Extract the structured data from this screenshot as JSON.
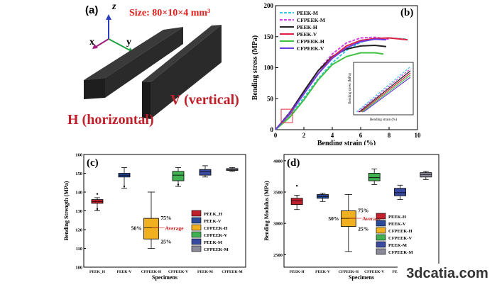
{
  "panel_a": {
    "label": "(a)",
    "size_text": "Size: 80×10×4 mm³",
    "axis_z": "z",
    "axis_x": "x",
    "axis_y": "y",
    "h_text": "H (horizontal)",
    "v_text": "V (vertical)",
    "colors": {
      "size": "#e0201a",
      "label": "#c0202a",
      "bar": "#2b2b2b"
    }
  },
  "chart_data": [
    {
      "id": "b",
      "type": "line",
      "label": "(b)",
      "title": "",
      "xlabel": "Bending strain (%)",
      "ylabel": "Bending stress (MPa)",
      "xlim": [
        0,
        10
      ],
      "ylim": [
        0,
        200
      ],
      "xticks": [
        0,
        2,
        4,
        6,
        8,
        10
      ],
      "yticks": [
        0,
        50,
        100,
        150,
        200
      ],
      "legend_position": "top-left",
      "series": [
        {
          "name": "PEEK-M",
          "color": "#39c8e6",
          "dash": true,
          "x": [
            0,
            1,
            2,
            3,
            4,
            5,
            6,
            7,
            8,
            9.2
          ],
          "y": [
            0,
            22,
            52,
            82,
            108,
            128,
            141,
            147,
            148,
            146
          ]
        },
        {
          "name": "CFPEEK-M",
          "color": "#d040e0",
          "dash": true,
          "x": [
            0,
            1,
            2,
            3,
            4,
            5,
            6,
            7,
            8
          ],
          "y": [
            0,
            28,
            62,
            95,
            122,
            140,
            148,
            149,
            146
          ]
        },
        {
          "name": "PEEK-H",
          "color": "#222222",
          "dash": false,
          "x": [
            0,
            1,
            2,
            3,
            4,
            5,
            6,
            7,
            7.8
          ],
          "y": [
            0,
            27,
            62,
            95,
            118,
            130,
            135,
            136,
            134
          ]
        },
        {
          "name": "PEEK-V",
          "color": "#e02040",
          "dash": false,
          "x": [
            0,
            1,
            2,
            3,
            4,
            5,
            6,
            7,
            8,
            9.3
          ],
          "y": [
            0,
            25,
            58,
            90,
            117,
            135,
            144,
            147,
            148,
            145
          ]
        },
        {
          "name": "CFPEEK-H",
          "color": "#40c040",
          "dash": false,
          "x": [
            0,
            1,
            2,
            3,
            4,
            5,
            6,
            7,
            7.6
          ],
          "y": [
            0,
            20,
            48,
            80,
            105,
            118,
            124,
            124,
            122
          ]
        },
        {
          "name": "CFPEEK-V",
          "color": "#6a3ce0",
          "dash": false,
          "x": [
            0,
            1,
            2,
            3,
            4,
            5,
            6,
            7,
            7.8
          ],
          "y": [
            0,
            26,
            58,
            90,
            115,
            132,
            142,
            146,
            145
          ]
        }
      ],
      "inset": {
        "ylabel": "Bending stress (MPa)",
        "xlabel": "Bending strain (%)"
      }
    },
    {
      "id": "c",
      "type": "box",
      "label": "(c)",
      "title": "",
      "xlabel": "Specimens",
      "ylabel": "Bending Strength (MPa)",
      "ylim": [
        100,
        160
      ],
      "yticks": [
        100,
        110,
        120,
        130,
        140,
        150,
        160
      ],
      "categories": [
        "PEEK_H",
        "PEEK-V",
        "CFPEEK-H",
        "CFPEEK-V",
        "PEEK-M",
        "CFPEEK-M"
      ],
      "boxes": [
        {
          "min": 130,
          "q1": 134,
          "median": 135,
          "q3": 136,
          "max": 137,
          "outliers": [
            131,
            139
          ],
          "color": "#c0202a"
        },
        {
          "min": 142,
          "q1": 148,
          "median": 149,
          "q3": 150,
          "max": 153,
          "outliers": [
            143
          ],
          "color": "#2a4a9a"
        },
        {
          "min": 110,
          "q1": 115,
          "median": 121,
          "q3": 126,
          "max": 140,
          "outliers": [],
          "color": "#f0b020"
        },
        {
          "min": 143,
          "q1": 146,
          "median": 149,
          "q3": 151,
          "max": 153,
          "outliers": [
            144
          ],
          "color": "#40b050"
        },
        {
          "min": 148,
          "q1": 149,
          "median": 151,
          "q3": 152,
          "max": 154,
          "outliers": [],
          "color": "#3a4aa0"
        },
        {
          "min": 151,
          "q1": 151.5,
          "median": 152,
          "q3": 152.5,
          "max": 153,
          "outliers": [],
          "color": "#8a8a98"
        }
      ],
      "annotation": {
        "p75": "75%",
        "p50": "50%",
        "p25": "25%",
        "average": "Average"
      },
      "legend_position": "right",
      "legend": [
        "PEEK_H",
        "PEEK-V",
        "CFPEEK-H",
        "CFPEEK-V",
        "PEEK-M",
        "CFPEEK-M"
      ]
    },
    {
      "id": "d",
      "type": "box",
      "label": "(d)",
      "title": "",
      "xlabel": "Specimens",
      "ylabel": "Bending Modulus (MPa)",
      "ylim": [
        2300,
        4100
      ],
      "yticks": [
        2500,
        3000,
        3500,
        4000
      ],
      "ytick_labels": [
        "2500",
        "3000",
        "3500",
        "4000"
      ],
      "categories": [
        "PEEK-H",
        "PEEK-V",
        "CFPEEK-H",
        "CFPEEK-V",
        "PEEK-M",
        "CFPEEK-M"
      ],
      "boxes": [
        {
          "min": 3220,
          "q1": 3300,
          "median": 3360,
          "q3": 3400,
          "max": 3450,
          "outliers": [
            3600
          ],
          "color": "#c0202a"
        },
        {
          "min": 3350,
          "q1": 3400,
          "median": 3430,
          "q3": 3460,
          "max": 3480,
          "outliers": [],
          "color": "#2a4a9a"
        },
        {
          "min": 2550,
          "q1": 2950,
          "median": 3080,
          "q3": 3200,
          "max": 3460,
          "outliers": [],
          "color": "#f0b020"
        },
        {
          "min": 3620,
          "q1": 3680,
          "median": 3730,
          "q3": 3800,
          "max": 3870,
          "outliers": [],
          "color": "#40b050"
        },
        {
          "min": 3380,
          "q1": 3440,
          "median": 3490,
          "q3": 3560,
          "max": 3610,
          "outliers": [],
          "color": "#3a4aa0"
        },
        {
          "min": 3700,
          "q1": 3740,
          "median": 3780,
          "q3": 3810,
          "max": 3830,
          "outliers": [],
          "color": "#8a8a98"
        }
      ],
      "annotation": {
        "p75": "75%",
        "p50": "50%",
        "p25": "25%",
        "average": "Average"
      },
      "legend_position": "right",
      "legend": [
        "PEEK-H",
        "PEEK-V",
        "CFPEEK-H",
        "CFPEEK-V",
        "PEEK-M",
        "CFPEEK-M"
      ]
    }
  ],
  "watermark": "3dcatia.com"
}
